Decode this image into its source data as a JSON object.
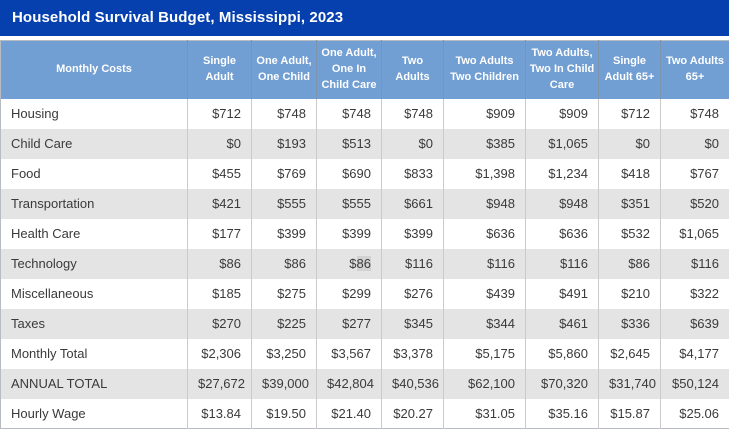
{
  "title": "Household Survival Budget, Mississippi, 2023",
  "colors": {
    "title_bar_bg": "#0540ae",
    "header_bg": "#719ed3",
    "alt_row_bg": "#e4e4e4",
    "body_text": "#3a3a3a",
    "cell_highlight": "#d2d2d2"
  },
  "chart_data": {
    "type": "table",
    "title": "Household Survival Budget, Mississippi, 2023",
    "columns": [
      "Monthly Costs",
      "Single Adult",
      "One Adult, One Child",
      "One Adult, One In Child Care",
      "Two Adults",
      "Two Adults Two Children",
      "Two Adults, Two In Child Care",
      "Single Adult 65+",
      "Two Adults 65+"
    ],
    "rows": [
      {
        "label": "Housing",
        "values": [
          "$712",
          "$748",
          "$748",
          "$748",
          "$909",
          "$909",
          "$712",
          "$748"
        ]
      },
      {
        "label": "Child Care",
        "values": [
          "$0",
          "$193",
          "$513",
          "$0",
          "$385",
          "$1,065",
          "$0",
          "$0"
        ]
      },
      {
        "label": "Food",
        "values": [
          "$455",
          "$769",
          "$690",
          "$833",
          "$1,398",
          "$1,234",
          "$418",
          "$767"
        ]
      },
      {
        "label": "Transportation",
        "values": [
          "$421",
          "$555",
          "$555",
          "$661",
          "$948",
          "$948",
          "$351",
          "$520"
        ]
      },
      {
        "label": "Health Care",
        "values": [
          "$177",
          "$399",
          "$399",
          "$399",
          "$636",
          "$636",
          "$532",
          "$1,065"
        ]
      },
      {
        "label": "Technology",
        "values": [
          "$86",
          "$86",
          "$86",
          "$116",
          "$116",
          "$116",
          "$86",
          "$116"
        ]
      },
      {
        "label": "Miscellaneous",
        "values": [
          "$185",
          "$275",
          "$299",
          "$276",
          "$439",
          "$491",
          "$210",
          "$322"
        ]
      },
      {
        "label": "Taxes",
        "values": [
          "$270",
          "$225",
          "$277",
          "$345",
          "$344",
          "$461",
          "$336",
          "$639"
        ]
      },
      {
        "label": "Monthly Total",
        "values": [
          "$2,306",
          "$3,250",
          "$3,567",
          "$3,378",
          "$5,175",
          "$5,860",
          "$2,645",
          "$4,177"
        ]
      },
      {
        "label": "ANNUAL TOTAL",
        "values": [
          "$27,672",
          "$39,000",
          "$42,804",
          "$40,536",
          "$62,100",
          "$70,320",
          "$31,740",
          "$50,124"
        ]
      },
      {
        "label": "Hourly Wage",
        "values": [
          "$13.84",
          "$19.50",
          "$21.40",
          "$20.27",
          "$31.05",
          "$35.16",
          "$15.87",
          "$25.06"
        ]
      }
    ],
    "highlighted_cell": {
      "row_label": "Technology",
      "column": "One Adult, One In Child Care",
      "row_index": 5,
      "value_index": 2,
      "prefix": "$",
      "highlighted_text": "86"
    }
  }
}
